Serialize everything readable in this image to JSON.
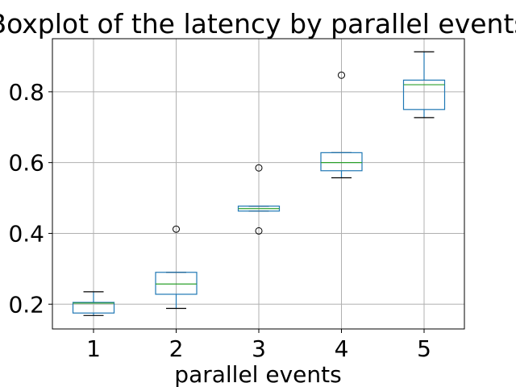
{
  "chart_data": {
    "type": "boxplot",
    "title": "Boxplot of the latency by parallel events",
    "xlabel": "parallel events",
    "ylabel": "",
    "categories": [
      "1",
      "2",
      "3",
      "4",
      "5"
    ],
    "ylim": [
      0.13,
      0.95
    ],
    "yticks": [
      0.2,
      0.4,
      0.6,
      0.8
    ],
    "ytick_labels": [
      "0.2",
      "0.4",
      "0.6",
      "0.8"
    ],
    "grid": true,
    "boxes": [
      {
        "category": "1",
        "whisker_low": 0.168,
        "q1": 0.175,
        "median": 0.203,
        "q3": 0.205,
        "whisker_high": 0.235,
        "outliers": []
      },
      {
        "category": "2",
        "whisker_low": 0.188,
        "q1": 0.228,
        "median": 0.257,
        "q3": 0.29,
        "whisker_high": 0.29,
        "outliers": [
          0.412
        ]
      },
      {
        "category": "3",
        "whisker_low": 0.463,
        "q1": 0.463,
        "median": 0.47,
        "q3": 0.477,
        "whisker_high": 0.477,
        "outliers": [
          0.585,
          0.407
        ]
      },
      {
        "category": "4",
        "whisker_low": 0.557,
        "q1": 0.577,
        "median": 0.6,
        "q3": 0.628,
        "whisker_high": 0.628,
        "outliers": [
          0.847
        ]
      },
      {
        "category": "5",
        "whisker_low": 0.727,
        "q1": 0.75,
        "median": 0.82,
        "q3": 0.833,
        "whisker_high": 0.913,
        "outliers": []
      }
    ],
    "colors": {
      "box": "#1f77b4",
      "median": "#2ca02c",
      "whisker_cap": "#000000",
      "grid": "#b0b0b0"
    }
  }
}
